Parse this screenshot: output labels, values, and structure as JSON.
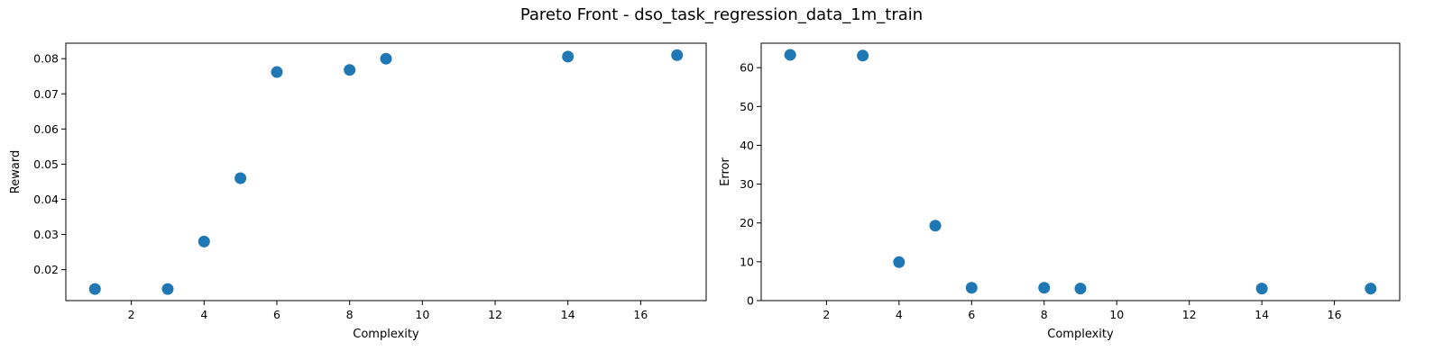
{
  "figure": {
    "title": "Pareto Front - dso_task_regression_data_1m_train"
  },
  "chart_data": [
    {
      "type": "scatter",
      "xlabel": "Complexity",
      "ylabel": "Reward",
      "xlim": [
        0.2,
        17.8
      ],
      "ylim": [
        0.0112,
        0.0844
      ],
      "xticks": [
        2,
        4,
        6,
        8,
        10,
        12,
        14,
        16
      ],
      "yticks": [
        0.02,
        0.03,
        0.04,
        0.05,
        0.06,
        0.07,
        0.08
      ],
      "ytick_labels": [
        "0.02",
        "0.03",
        "0.04",
        "0.05",
        "0.06",
        "0.07",
        "0.08"
      ],
      "x": [
        1,
        3,
        4,
        5,
        6,
        8,
        9,
        14,
        17
      ],
      "y": [
        0.0145,
        0.0145,
        0.028,
        0.046,
        0.0762,
        0.0768,
        0.08,
        0.0806,
        0.081
      ],
      "marker_color": "#1f77b4",
      "grid": false
    },
    {
      "type": "scatter",
      "xlabel": "Complexity",
      "ylabel": "Error",
      "xlim": [
        0.2,
        17.8
      ],
      "ylim": [
        0,
        66.3
      ],
      "xticks": [
        2,
        4,
        6,
        8,
        10,
        12,
        14,
        16
      ],
      "yticks": [
        0,
        10,
        20,
        30,
        40,
        50,
        60
      ],
      "ytick_labels": [
        "0",
        "10",
        "20",
        "30",
        "40",
        "50",
        "60"
      ],
      "x": [
        1,
        3,
        4,
        5,
        6,
        8,
        9,
        14,
        17
      ],
      "y": [
        63.3,
        63.1,
        9.9,
        19.3,
        3.3,
        3.3,
        3.1,
        3.1,
        3.1
      ],
      "marker_color": "#1f77b4",
      "grid": false
    }
  ]
}
